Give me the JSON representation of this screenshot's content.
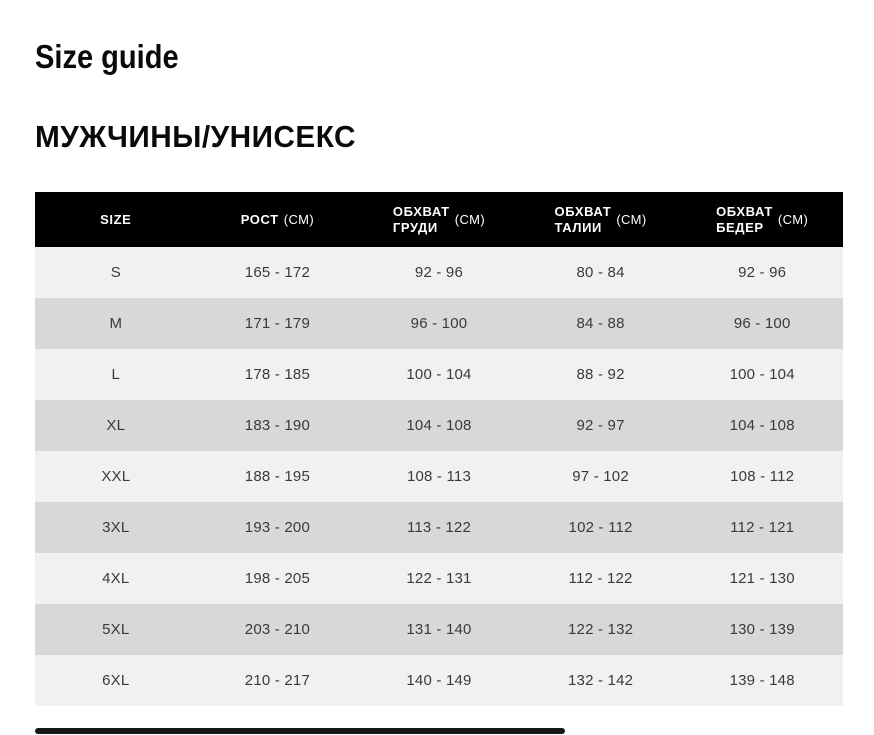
{
  "page": {
    "title": "Size guide",
    "section_title": "МУЖЧИНЫ/УНИСЕКС"
  },
  "table": {
    "columns": [
      {
        "title": "SIZE"
      },
      {
        "line1": "РОСТ",
        "unit": "(СМ)"
      },
      {
        "line1": "ОБХВАТ",
        "line2": "ГРУДИ",
        "unit": "(СМ)"
      },
      {
        "line1": "ОБХВАТ",
        "line2": "ТАЛИИ",
        "unit": "(СМ)"
      },
      {
        "line1": "ОБХВАТ",
        "line2": "БЕДЕР",
        "unit": "(СМ)"
      }
    ],
    "rows": [
      {
        "size": "S",
        "height": "165 - 172",
        "chest": "92 - 96",
        "waist": "80 - 84",
        "hips": "92 - 96"
      },
      {
        "size": "M",
        "height": "171 - 179",
        "chest": "96 - 100",
        "waist": "84 - 88",
        "hips": "96 - 100"
      },
      {
        "size": "L",
        "height": "178 - 185",
        "chest": "100 - 104",
        "waist": "88 - 92",
        "hips": "100 - 104"
      },
      {
        "size": "XL",
        "height": "183 - 190",
        "chest": "104 - 108",
        "waist": "92 - 97",
        "hips": "104 - 108"
      },
      {
        "size": "XXL",
        "height": "188 - 195",
        "chest": "108 - 113",
        "waist": "97 - 102",
        "hips": "108 - 112"
      },
      {
        "size": "3XL",
        "height": "193 - 200",
        "chest": "113 - 122",
        "waist": "102 - 112",
        "hips": "112 - 121"
      },
      {
        "size": "4XL",
        "height": "198 - 205",
        "chest": "122 - 131",
        "waist": "112 - 122",
        "hips": "121 - 130"
      },
      {
        "size": "5XL",
        "height": "203 - 210",
        "chest": "131 - 140",
        "waist": "122 - 132",
        "hips": "130 - 139"
      },
      {
        "size": "6XL",
        "height": "210 - 217",
        "chest": "140 - 149",
        "waist": "132 - 142",
        "hips": "139 - 148"
      }
    ]
  },
  "colors": {
    "header_bg": "#000000",
    "header_text": "#ffffff",
    "row_light": "#f1f1f1",
    "row_dark": "#d8d8d8",
    "cell_text": "#3a3a3a",
    "title_text": "#0a0a0a",
    "scrollbar_thumb": "#161616"
  }
}
